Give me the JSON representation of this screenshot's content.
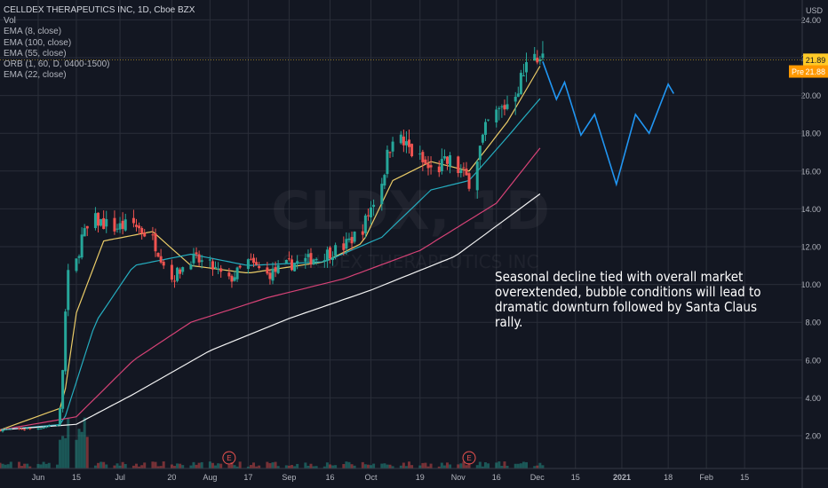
{
  "header": {
    "symbol": "CELLDEX THERAPEUTICS INC, 1D, Cboe BZX",
    "currency": "USD",
    "indicators": [
      "Vol",
      "EMA (8, close)",
      "EMA (100, close)",
      "EMA (55, close)",
      "ORB (1, 60, D, 0400-1500)",
      "EMA (22, close)"
    ]
  },
  "price_tags": {
    "last": "21.89",
    "pre_label": "Pre",
    "pre": "21.88"
  },
  "watermark": {
    "ticker": "CLDX, 1D",
    "name": "CELLDEX THERAPEUTICS INC"
  },
  "annotation": "Seasonal decline tied with overall market overextended, bubble conditions will lead to dramatic downturn followed by Santa Claus rally.",
  "colors": {
    "background": "#131722",
    "grid": "#2a2e39",
    "up": "#26a69a",
    "down": "#ef5350",
    "ema8": "#f5d56b",
    "ema22": "#26b5c8",
    "ema55": "#e0457b",
    "ema100": "#ffffff",
    "projection": "#2196f3",
    "pre": "#ff9800",
    "last": "#ffca28"
  },
  "chart_data": {
    "type": "candlestick",
    "ylim": [
      0.8,
      25.2
    ],
    "y_ticks": [
      2,
      4,
      6,
      8,
      10,
      12,
      14,
      16,
      18,
      20,
      22,
      24
    ],
    "y_tick_labels": [
      "2.00",
      "4.00",
      "6.00",
      "8.00",
      "10.00",
      "12.00",
      "14.00",
      "16.00",
      "18.00",
      "20.00",
      "22.00",
      "24.00"
    ],
    "x_tick_labels": [
      "Jun",
      "15",
      "Jul",
      "20",
      "Aug",
      "17",
      "Sep",
      "16",
      "Oct",
      "19",
      "Nov",
      "16",
      "Dec",
      "15",
      "2021",
      "18",
      "Feb",
      "15"
    ],
    "x_start": "2020-05-18",
    "last_price": 21.89,
    "pre_price": 21.88,
    "earnings_markers": [
      {
        "date": "2020-08-10",
        "label": "E"
      },
      {
        "date": "2020-11-06",
        "label": "E"
      }
    ],
    "close_anchors": [
      [
        "2020-05-18",
        2.3
      ],
      [
        "2020-06-01",
        2.4
      ],
      [
        "2020-06-08",
        2.6
      ],
      [
        "2020-06-09",
        3.4
      ],
      [
        "2020-06-10",
        5.5
      ],
      [
        "2020-06-11",
        8.5
      ],
      [
        "2020-06-12",
        10.5
      ],
      [
        "2020-06-15",
        11.2
      ],
      [
        "2020-06-17",
        12.5
      ],
      [
        "2020-06-22",
        13.4
      ],
      [
        "2020-06-29",
        13.0
      ],
      [
        "2020-07-06",
        13.2
      ],
      [
        "2020-07-13",
        12.4
      ],
      [
        "2020-07-20",
        10.3
      ],
      [
        "2020-07-27",
        11.4
      ],
      [
        "2020-08-03",
        11.0
      ],
      [
        "2020-08-10",
        10.2
      ],
      [
        "2020-08-17",
        11.2
      ],
      [
        "2020-08-24",
        10.5
      ],
      [
        "2020-08-31",
        11.0
      ],
      [
        "2020-09-08",
        11.3
      ],
      [
        "2020-09-14",
        11.6
      ],
      [
        "2020-09-21",
        12.0
      ],
      [
        "2020-09-28",
        13.0
      ],
      [
        "2020-10-05",
        15.5
      ],
      [
        "2020-10-09",
        18.0
      ],
      [
        "2020-10-16",
        17.0
      ],
      [
        "2020-10-23",
        16.0
      ],
      [
        "2020-10-30",
        16.5
      ],
      [
        "2020-11-06",
        15.5
      ],
      [
        "2020-11-13",
        18.5
      ],
      [
        "2020-11-20",
        19.6
      ],
      [
        "2020-11-25",
        20.8
      ],
      [
        "2020-11-30",
        22.5
      ],
      [
        "2020-12-03",
        21.89
      ]
    ],
    "ema_series": [
      {
        "name": "EMA (8, close)",
        "points": [
          [
            "2020-05-18",
            2.3
          ],
          [
            "2020-06-10",
            3.5
          ],
          [
            "2020-06-15",
            8.5
          ],
          [
            "2020-06-25",
            12.3
          ],
          [
            "2020-07-13",
            12.8
          ],
          [
            "2020-07-27",
            11.0
          ],
          [
            "2020-08-17",
            10.6
          ],
          [
            "2020-09-14",
            11.2
          ],
          [
            "2020-09-28",
            12.2
          ],
          [
            "2020-10-09",
            15.5
          ],
          [
            "2020-10-23",
            16.5
          ],
          [
            "2020-11-06",
            16.0
          ],
          [
            "2020-11-20",
            18.6
          ],
          [
            "2020-12-03",
            21.8
          ]
        ]
      },
      {
        "name": "EMA (22, close)",
        "points": [
          [
            "2020-05-18",
            2.3
          ],
          [
            "2020-06-10",
            2.6
          ],
          [
            "2020-06-22",
            8.0
          ],
          [
            "2020-07-06",
            11.0
          ],
          [
            "2020-07-27",
            11.6
          ],
          [
            "2020-08-17",
            11.0
          ],
          [
            "2020-09-14",
            11.2
          ],
          [
            "2020-10-05",
            12.5
          ],
          [
            "2020-10-23",
            15.0
          ],
          [
            "2020-11-06",
            15.5
          ],
          [
            "2020-11-20",
            17.8
          ],
          [
            "2020-12-03",
            20.0
          ]
        ]
      },
      {
        "name": "EMA (55, close)",
        "points": [
          [
            "2020-05-18",
            2.3
          ],
          [
            "2020-06-15",
            3.0
          ],
          [
            "2020-07-06",
            6.0
          ],
          [
            "2020-07-27",
            8.0
          ],
          [
            "2020-08-24",
            9.3
          ],
          [
            "2020-09-21",
            10.3
          ],
          [
            "2020-10-19",
            11.8
          ],
          [
            "2020-11-16",
            14.3
          ],
          [
            "2020-12-03",
            17.4
          ]
        ]
      },
      {
        "name": "EMA (100, close)",
        "points": [
          [
            "2020-05-18",
            2.3
          ],
          [
            "2020-06-15",
            2.6
          ],
          [
            "2020-07-06",
            4.2
          ],
          [
            "2020-08-03",
            6.5
          ],
          [
            "2020-09-01",
            8.2
          ],
          [
            "2020-10-01",
            9.7
          ],
          [
            "2020-11-01",
            11.5
          ],
          [
            "2020-12-03",
            14.9
          ]
        ]
      }
    ],
    "projection": [
      [
        "2020-12-03",
        21.8
      ],
      [
        "2020-12-08",
        19.8
      ],
      [
        "2020-12-11",
        20.7
      ],
      [
        "2020-12-17",
        17.9
      ],
      [
        "2020-12-22",
        19.0
      ],
      [
        "2020-12-30",
        15.3
      ],
      [
        "2021-01-06",
        19.0
      ],
      [
        "2021-01-11",
        18.0
      ],
      [
        "2021-01-18",
        20.6
      ],
      [
        "2021-01-20",
        20.1
      ]
    ]
  }
}
